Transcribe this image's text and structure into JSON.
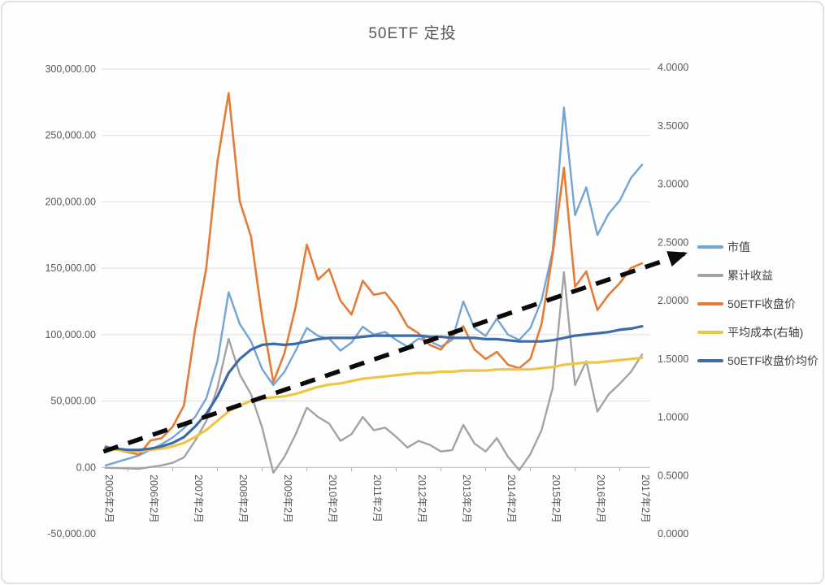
{
  "title": "50ETF 定投",
  "chart_data": {
    "type": "line",
    "title": "50ETF 定投",
    "grid": "horizontal",
    "legend_position": "right-middle",
    "categories": [
      "2005年2月",
      "2006年2月",
      "2007年2月",
      "2008年2月",
      "2009年2月",
      "2010年2月",
      "2011年2月",
      "2012年2月",
      "2013年2月",
      "2014年2月",
      "2015年2月",
      "2016年2月",
      "2017年2月"
    ],
    "x_years": [
      2005.08,
      2005.33,
      2005.58,
      2005.83,
      2006.08,
      2006.33,
      2006.58,
      2006.83,
      2007.08,
      2007.33,
      2007.58,
      2007.83,
      2008.08,
      2008.33,
      2008.58,
      2008.83,
      2009.08,
      2009.33,
      2009.58,
      2009.83,
      2010.08,
      2010.33,
      2010.58,
      2010.83,
      2011.08,
      2011.33,
      2011.58,
      2011.83,
      2012.08,
      2012.33,
      2012.58,
      2012.83,
      2013.08,
      2013.33,
      2013.58,
      2013.83,
      2014.08,
      2014.33,
      2014.58,
      2014.83,
      2015.08,
      2015.33,
      2015.58,
      2015.83,
      2016.08,
      2016.33,
      2016.58,
      2016.83,
      2017.08
    ],
    "left_axis": {
      "min": -50000,
      "max": 300000,
      "step": 50000,
      "tick_labels": [
        "300,000.00",
        "250,000.00",
        "200,000.00",
        "150,000.00",
        "100,000.00",
        "50,000.00",
        "0.00",
        "-50,000.00"
      ]
    },
    "right_axis": {
      "min": 0,
      "max": 4,
      "step": 0.5,
      "tick_labels": [
        "4.0000",
        "3.5000",
        "3.0000",
        "2.5000",
        "2.0000",
        "1.5000",
        "1.0000",
        "0.5000",
        "0.0000"
      ]
    },
    "series": [
      {
        "name": "市值",
        "axis": "left",
        "color": "#74A4D4",
        "line_width": 2.4,
        "values": [
          1500,
          4000,
          6500,
          9200,
          13200,
          17500,
          22500,
          29500,
          38000,
          52000,
          80000,
          132000,
          108000,
          95000,
          74000,
          62000,
          72000,
          88000,
          105000,
          99000,
          97000,
          88000,
          94000,
          106000,
          100000,
          102000,
          96000,
          91000,
          97000,
          95000,
          91000,
          96000,
          125000,
          105000,
          99000,
          112000,
          100000,
          96000,
          105000,
          126000,
          163000,
          271000,
          190000,
          211000,
          175000,
          191000,
          201000,
          218000,
          228000
        ]
      },
      {
        "name": "累计收益",
        "axis": "left",
        "color": "#A3A3A3",
        "line_width": 2.4,
        "values": [
          -300,
          -500,
          -800,
          -1000,
          300,
          1500,
          3500,
          7500,
          20000,
          35000,
          60000,
          97000,
          70000,
          55000,
          30000,
          -4000,
          8000,
          25000,
          45000,
          38000,
          33000,
          20000,
          25000,
          38000,
          28000,
          30000,
          23000,
          15000,
          20000,
          17000,
          12000,
          13000,
          32000,
          18000,
          12000,
          22000,
          8000,
          -2000,
          10000,
          28000,
          60000,
          147000,
          62000,
          80000,
          42000,
          55000,
          63000,
          72000,
          85000
        ]
      },
      {
        "name": "50ETF收盘价",
        "axis": "right",
        "color": "#E47C35",
        "line_width": 2.6,
        "values": [
          0.75,
          0.72,
          0.7,
          0.68,
          0.8,
          0.82,
          0.92,
          1.1,
          1.75,
          2.28,
          3.19,
          3.78,
          2.85,
          2.55,
          1.86,
          1.3,
          1.55,
          1.95,
          2.48,
          2.18,
          2.27,
          2.0,
          1.88,
          2.17,
          2.05,
          2.07,
          1.95,
          1.78,
          1.72,
          1.62,
          1.58,
          1.7,
          1.78,
          1.58,
          1.5,
          1.56,
          1.45,
          1.42,
          1.5,
          1.8,
          2.4,
          3.14,
          2.12,
          2.25,
          1.92,
          2.05,
          2.15,
          2.28,
          2.32
        ]
      },
      {
        "name": "平均成本(右轴)",
        "axis": "right",
        "color": "#EEC643",
        "line_width": 3.2,
        "values": [
          0.73,
          0.72,
          0.71,
          0.71,
          0.72,
          0.73,
          0.75,
          0.78,
          0.83,
          0.89,
          0.97,
          1.05,
          1.1,
          1.14,
          1.16,
          1.17,
          1.18,
          1.2,
          1.23,
          1.26,
          1.28,
          1.29,
          1.31,
          1.33,
          1.34,
          1.35,
          1.36,
          1.37,
          1.38,
          1.38,
          1.39,
          1.39,
          1.4,
          1.4,
          1.4,
          1.41,
          1.41,
          1.41,
          1.41,
          1.42,
          1.43,
          1.45,
          1.46,
          1.47,
          1.47,
          1.48,
          1.49,
          1.5,
          1.51
        ]
      },
      {
        "name": "50ETF收盘价均价",
        "axis": "right",
        "color": "#3E6BA8",
        "line_width": 3.2,
        "values": [
          0.74,
          0.73,
          0.72,
          0.72,
          0.73,
          0.75,
          0.78,
          0.83,
          0.92,
          1.03,
          1.18,
          1.38,
          1.5,
          1.58,
          1.62,
          1.63,
          1.62,
          1.63,
          1.65,
          1.67,
          1.68,
          1.68,
          1.68,
          1.69,
          1.7,
          1.7,
          1.7,
          1.7,
          1.7,
          1.69,
          1.69,
          1.68,
          1.68,
          1.68,
          1.67,
          1.67,
          1.66,
          1.65,
          1.65,
          1.65,
          1.66,
          1.68,
          1.7,
          1.71,
          1.72,
          1.73,
          1.75,
          1.76,
          1.78
        ]
      }
    ],
    "trend_arrow": {
      "style": "dashed",
      "color": "#0a0a0a",
      "start": {
        "year": 2005.03,
        "value_left": 12000
      },
      "end": {
        "year": 2018.03,
        "value_left": 161000
      }
    }
  }
}
